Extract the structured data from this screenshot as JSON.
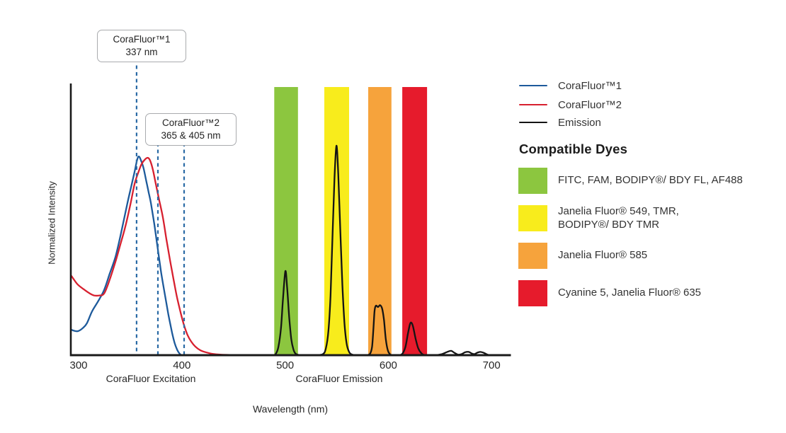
{
  "chart_data": {
    "type": "line",
    "title": "",
    "xlabel": "Wavelength (nm)",
    "ylabel": "Normalized Intensity",
    "x_ticks": [
      300,
      400,
      500,
      600,
      700
    ],
    "x_range_nm": [
      293,
      718
    ],
    "ylim": [
      0,
      1
    ],
    "grid": false,
    "legend_position": "right",
    "section_labels": [
      {
        "text": "CoraFluor Excitation"
      },
      {
        "text": "CoraFluor Emission"
      }
    ],
    "annotations": [
      {
        "title": "CoraFluor™1",
        "value": "337 nm",
        "marker_nm": [
          356.2
        ]
      },
      {
        "title": "CoraFluor™2",
        "value": "365 & 405 nm",
        "marker_nm": [
          376.8,
          402.2
        ]
      }
    ],
    "marker_line_color": "#2a6aa5",
    "series": [
      {
        "name": "CoraFluor™1",
        "color": "#1d5a9b",
        "points": [
          [
            293.1,
            0.094
          ],
          [
            296,
            0.09
          ],
          [
            299.5,
            0.089
          ],
          [
            304,
            0.1
          ],
          [
            308,
            0.118
          ],
          [
            313,
            0.162
          ],
          [
            319,
            0.2
          ],
          [
            324.7,
            0.241
          ],
          [
            330,
            0.3
          ],
          [
            335.7,
            0.364
          ],
          [
            341,
            0.45
          ],
          [
            347.3,
            0.563
          ],
          [
            351,
            0.625
          ],
          [
            354.2,
            0.678
          ],
          [
            356.5,
            0.72
          ],
          [
            358.3,
            0.735
          ],
          [
            360.5,
            0.72
          ],
          [
            363,
            0.69
          ],
          [
            365.8,
            0.64
          ],
          [
            368,
            0.6
          ],
          [
            370,
            0.563
          ],
          [
            373.5,
            0.48
          ],
          [
            376.8,
            0.39
          ],
          [
            380,
            0.305
          ],
          [
            383.7,
            0.222
          ],
          [
            387,
            0.15
          ],
          [
            390.5,
            0.084
          ],
          [
            393,
            0.045
          ],
          [
            395.5,
            0.02
          ],
          [
            397.5,
            0.007
          ],
          [
            399.5,
            0
          ]
        ]
      },
      {
        "name": "CoraFluor™2",
        "color": "#d7202f",
        "points": [
          [
            293.1,
            0.293
          ],
          [
            299,
            0.262
          ],
          [
            306,
            0.241
          ],
          [
            311,
            0.228
          ],
          [
            315,
            0.221
          ],
          [
            320,
            0.221
          ],
          [
            324.7,
            0.228
          ],
          [
            330,
            0.278
          ],
          [
            335.7,
            0.346
          ],
          [
            340.5,
            0.41
          ],
          [
            345.3,
            0.476
          ],
          [
            350,
            0.555
          ],
          [
            354.2,
            0.633
          ],
          [
            358,
            0.678
          ],
          [
            361,
            0.707
          ],
          [
            364.5,
            0.725
          ],
          [
            367.2,
            0.73
          ],
          [
            369.5,
            0.718
          ],
          [
            372,
            0.685
          ],
          [
            374.8,
            0.633
          ],
          [
            378,
            0.575
          ],
          [
            381.6,
            0.51
          ],
          [
            385,
            0.43
          ],
          [
            388.5,
            0.353
          ],
          [
            392,
            0.28
          ],
          [
            395.3,
            0.215
          ],
          [
            399,
            0.155
          ],
          [
            402.2,
            0.11
          ],
          [
            405.5,
            0.075
          ],
          [
            409.1,
            0.05
          ],
          [
            413,
            0.032
          ],
          [
            418,
            0.018
          ],
          [
            424,
            0.01
          ],
          [
            429.6,
            0.005
          ],
          [
            437,
            0.002
          ],
          [
            446,
            0.001
          ],
          [
            458,
            0
          ]
        ]
      },
      {
        "name": "Emission",
        "color": "#141414",
        "points": [
          [
            489,
            0
          ],
          [
            491,
            0.005
          ],
          [
            493.5,
            0.03
          ],
          [
            496,
            0.1
          ],
          [
            498,
            0.21
          ],
          [
            500.3,
            0.311
          ],
          [
            502,
            0.25
          ],
          [
            504,
            0.14
          ],
          [
            506,
            0.06
          ],
          [
            508,
            0.022
          ],
          [
            510,
            0.006
          ],
          [
            513,
            0.001
          ],
          [
            518,
            0
          ],
          [
            530,
            0
          ],
          [
            536.6,
            0.004
          ],
          [
            539.5,
            0.025
          ],
          [
            542,
            0.09
          ],
          [
            544,
            0.22
          ],
          [
            546,
            0.45
          ],
          [
            547.8,
            0.65
          ],
          [
            549.7,
            0.775
          ],
          [
            551.5,
            0.67
          ],
          [
            553.5,
            0.46
          ],
          [
            555.5,
            0.26
          ],
          [
            557.5,
            0.12
          ],
          [
            559.5,
            0.045
          ],
          [
            562,
            0.012
          ],
          [
            565,
            0.002
          ],
          [
            570,
            0
          ],
          [
            578,
            0
          ],
          [
            582,
            0.004
          ],
          [
            584.2,
            0.03
          ],
          [
            585.6,
            0.1
          ],
          [
            586.7,
            0.165
          ],
          [
            588,
            0.183
          ],
          [
            590,
            0.178
          ],
          [
            592,
            0.185
          ],
          [
            594,
            0.172
          ],
          [
            595.8,
            0.13
          ],
          [
            597.5,
            0.06
          ],
          [
            599.5,
            0.018
          ],
          [
            601.8,
            0.003
          ],
          [
            605,
            0
          ],
          [
            610,
            0
          ],
          [
            613.5,
            0.005
          ],
          [
            616.5,
            0.03
          ],
          [
            619,
            0.08
          ],
          [
            621,
            0.115
          ],
          [
            622.4,
            0.12
          ],
          [
            624,
            0.105
          ],
          [
            626.5,
            0.06
          ],
          [
            629,
            0.025
          ],
          [
            632,
            0.007
          ],
          [
            634.7,
            0.001
          ],
          [
            638,
            0
          ],
          [
            646,
            0
          ],
          [
            652,
            0.004
          ],
          [
            657,
            0.012
          ],
          [
            660.8,
            0.016
          ],
          [
            664,
            0.009
          ],
          [
            667.5,
            0.002
          ],
          [
            671,
            0.004
          ],
          [
            674.5,
            0.011
          ],
          [
            677.9,
            0.012
          ],
          [
            681,
            0.006
          ],
          [
            683.5,
            0.004
          ],
          [
            686,
            0.009
          ],
          [
            689,
            0.012
          ],
          [
            692.3,
            0.009
          ],
          [
            695.5,
            0.003
          ],
          [
            699,
            0
          ],
          [
            712,
            0
          ]
        ]
      }
    ],
    "filter_bands": [
      {
        "label": "FITC, FAM, BODIPY®/ BDY FL, AF488",
        "color": "#8cc63f",
        "nm": [
          489.5,
          512.5
        ]
      },
      {
        "label": "Janelia Fluor® 549, TMR, BODIPY®/ BDY TMR",
        "color": "#f8ec1c",
        "nm": [
          538,
          562
        ]
      },
      {
        "label": "Janelia Fluor® 585",
        "color": "#f6a33c",
        "nm": [
          580.5,
          603
        ]
      },
      {
        "label": "Cyanine 5, Janelia Fluor® 635",
        "color": "#e61b2c",
        "nm": [
          613.5,
          637.5
        ]
      }
    ]
  },
  "legend": {
    "series": [
      {
        "label": "CoraFluor™1",
        "color": "#1d5a9b"
      },
      {
        "label": "CoraFluor™2",
        "color": "#d7202f"
      },
      {
        "label": "Emission",
        "color": "#141414"
      }
    ],
    "dyes_heading": "Compatible Dyes",
    "dyes": [
      {
        "label": "FITC, FAM, BODIPY®/ BDY FL, AF488",
        "color": "#8cc63f"
      },
      {
        "label": "Janelia Fluor® 549, TMR,\nBODIPY®/ BDY TMR",
        "color": "#f8ec1c"
      },
      {
        "label": "Janelia Fluor® 585",
        "color": "#f6a33c"
      },
      {
        "label": "Cyanine 5, Janelia Fluor® 635",
        "color": "#e61b2c"
      }
    ]
  }
}
